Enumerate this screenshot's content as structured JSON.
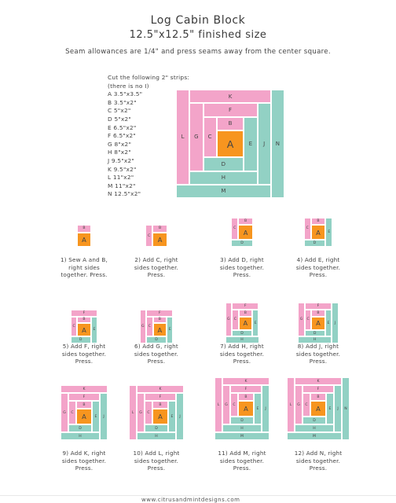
{
  "header": {
    "title": "Log Cabin Block",
    "subtitle": "12.5\"x12.5\" finished size",
    "note": "Seam allowances are 1/4\" and press seams away from the center square."
  },
  "cut_list": {
    "heading": "Cut the following 2\" strips:",
    "subheading": "(there is no I)",
    "items": [
      "A 3.5\"x3.5\"",
      "B 3.5\"x2\"",
      "C 5\"x2\"",
      "D 5\"x2\"",
      "E 6.5\"x2\"",
      "F 6.5\"x2\"",
      "G 8\"x2\"",
      "H 8\"x2\"",
      "J 9.5\"x2\"",
      "K 9.5\"x2\"",
      "L 11\"x2\"",
      "M 11\"x2\"",
      "N 12.5\"x2\""
    ]
  },
  "colors": {
    "pink": "#f3a4c9",
    "teal": "#92d1c4",
    "orange": "#f7951f",
    "border": "#ffffff"
  },
  "pieces": [
    {
      "label": "A",
      "color": "orange"
    },
    {
      "label": "B",
      "color": "pink"
    },
    {
      "label": "C",
      "color": "pink"
    },
    {
      "label": "D",
      "color": "teal"
    },
    {
      "label": "E",
      "color": "teal"
    },
    {
      "label": "F",
      "color": "pink"
    },
    {
      "label": "G",
      "color": "pink"
    },
    {
      "label": "H",
      "color": "teal"
    },
    {
      "label": "J",
      "color": "teal"
    },
    {
      "label": "K",
      "color": "pink"
    },
    {
      "label": "L",
      "color": "pink"
    },
    {
      "label": "M",
      "color": "teal"
    },
    {
      "label": "N",
      "color": "teal"
    }
  ],
  "steps": [
    {
      "caption": [
        "1) Sew A and B,",
        "right sides",
        "together. Press."
      ],
      "pieces": 2
    },
    {
      "caption": [
        "2) Add C, right",
        "sides together.",
        "Press."
      ],
      "pieces": 3
    },
    {
      "caption": [
        "3) Add D, right",
        "sides together.",
        "Press."
      ],
      "pieces": 4
    },
    {
      "caption": [
        "4) Add E, right",
        "sides together.",
        "Press."
      ],
      "pieces": 5
    },
    {
      "caption": [
        "5) Add F, right",
        "sides together.",
        "Press."
      ],
      "pieces": 6
    },
    {
      "caption": [
        "6) Add G, right",
        "sides together.",
        "Press."
      ],
      "pieces": 7
    },
    {
      "caption": [
        "7) Add H, right",
        "sides together.",
        "Press."
      ],
      "pieces": 8
    },
    {
      "caption": [
        "8) Add J, right",
        "sides together.",
        "Press."
      ],
      "pieces": 9
    },
    {
      "caption": [
        "9) Add K, right",
        "sides together.",
        "Press."
      ],
      "pieces": 10
    },
    {
      "caption": [
        "10) Add L, right",
        "sides together.",
        "Press."
      ],
      "pieces": 11
    },
    {
      "caption": [
        "11) Add M, right",
        "sides together.",
        "Press."
      ],
      "pieces": 12
    },
    {
      "caption": [
        "12) Add N, right",
        "sides together.",
        "Press."
      ],
      "pieces": 13
    }
  ],
  "footer": {
    "website": "www.citrusandmintdesigns.com"
  }
}
